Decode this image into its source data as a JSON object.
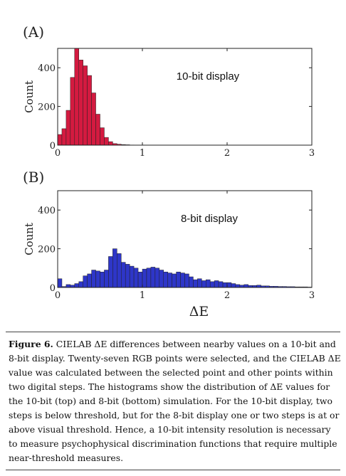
{
  "chart_data": [
    {
      "type": "bar",
      "panel_label": "(A)",
      "annotation": "10-bit display",
      "ylabel": "Count",
      "xlabel": "",
      "xlim": [
        0,
        3
      ],
      "ylim": [
        0,
        500
      ],
      "xticks": [
        "0",
        "1",
        "2",
        "3"
      ],
      "yticks": [
        "0",
        "200",
        "400"
      ],
      "bin_width": 0.05,
      "color": "#d41a40",
      "values": [
        55,
        85,
        180,
        350,
        500,
        440,
        410,
        360,
        270,
        160,
        90,
        40,
        18,
        8,
        5,
        3,
        2,
        1,
        0,
        0
      ]
    },
    {
      "type": "bar",
      "panel_label": "(B)",
      "annotation": "8-bit display",
      "ylabel": "Count",
      "xlabel": "ΔE",
      "xlim": [
        0,
        3
      ],
      "ylim": [
        0,
        500
      ],
      "xticks": [
        "0",
        "1",
        "2",
        "3"
      ],
      "yticks": [
        "0",
        "200",
        "400"
      ],
      "bin_width": 0.05,
      "color": "#2e36c8",
      "values": [
        45,
        5,
        15,
        12,
        20,
        30,
        60,
        70,
        90,
        85,
        80,
        90,
        160,
        200,
        175,
        130,
        120,
        110,
        100,
        80,
        95,
        100,
        105,
        100,
        90,
        80,
        75,
        70,
        80,
        75,
        70,
        55,
        40,
        45,
        35,
        40,
        30,
        35,
        30,
        25,
        25,
        20,
        15,
        12,
        15,
        10,
        10,
        12,
        8,
        8,
        6,
        6,
        5,
        5,
        4,
        4,
        3,
        3,
        3,
        2
      ]
    }
  ],
  "caption": {
    "lead": "Figure 6.",
    "text": "  CIELAB ΔE differences between nearby values on a 10-bit and 8-bit display.  Twenty-seven RGB points were selected, and the CIELAB ΔE value was calculated between the selected point and other points within two digital steps. The histograms show the distribution of ΔE values for the 10-bit (top) and 8-bit (bottom) simulation. For the 10-bit display, two steps is below threshold, but for the 8-bit display one or two steps is at or above visual threshold. Hence, a 10-bit intensity resolution is necessary to measure psychophysical discrimination functions that require multiple near-threshold measures."
  }
}
